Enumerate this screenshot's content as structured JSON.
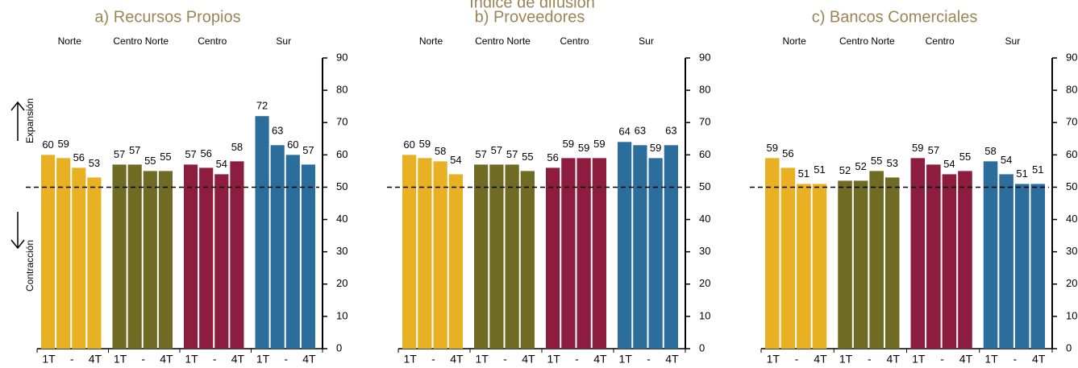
{
  "title": "Índice de difusión",
  "chart_data": [
    {
      "type": "bar",
      "title": "a) Recursos Propios",
      "categories": [
        "1T",
        "-",
        null,
        "4T"
      ],
      "series": [
        {
          "name": "Norte",
          "color": "#e8b124",
          "values": [
            60,
            59,
            56,
            53
          ]
        },
        {
          "name": "Centro Norte",
          "color": "#6f6b25",
          "values": [
            57,
            57,
            55,
            55
          ]
        },
        {
          "name": "Centro",
          "color": "#8c1d3f",
          "values": [
            57,
            56,
            54,
            58
          ]
        },
        {
          "name": "Sur",
          "color": "#2b6d9b",
          "values": [
            72,
            63,
            60,
            57
          ]
        }
      ],
      "ylim": [
        0,
        90
      ],
      "yticks": [
        0,
        10,
        20,
        30,
        40,
        50,
        60,
        70,
        80,
        90
      ],
      "reference_line": 50,
      "annotations": [
        "Expansión",
        "Contracción"
      ]
    },
    {
      "type": "bar",
      "title": "b) Proveedores",
      "categories": [
        "1T",
        "-",
        null,
        "4T"
      ],
      "series": [
        {
          "name": "Norte",
          "color": "#e8b124",
          "values": [
            60,
            59,
            58,
            54
          ]
        },
        {
          "name": "Centro Norte",
          "color": "#6f6b25",
          "values": [
            57,
            57,
            57,
            55
          ]
        },
        {
          "name": "Centro",
          "color": "#8c1d3f",
          "values": [
            56,
            59,
            59,
            59
          ]
        },
        {
          "name": "Sur",
          "color": "#2b6d9b",
          "values": [
            64,
            63,
            59,
            63
          ]
        }
      ],
      "ylim": [
        0,
        90
      ],
      "yticks": [
        0,
        10,
        20,
        30,
        40,
        50,
        60,
        70,
        80,
        90
      ],
      "reference_line": 50
    },
    {
      "type": "bar",
      "title": "c) Bancos Comerciales",
      "categories": [
        "1T",
        "-",
        null,
        "4T"
      ],
      "series": [
        {
          "name": "Norte",
          "color": "#e8b124",
          "values": [
            59,
            56,
            51,
            51
          ]
        },
        {
          "name": "Centro Norte",
          "color": "#6f6b25",
          "values": [
            52,
            52,
            55,
            53
          ]
        },
        {
          "name": "Centro",
          "color": "#8c1d3f",
          "values": [
            59,
            57,
            54,
            55
          ]
        },
        {
          "name": "Sur",
          "color": "#2b6d9b",
          "values": [
            58,
            54,
            51,
            51
          ]
        }
      ],
      "ylim": [
        0,
        90
      ],
      "yticks": [
        0,
        10,
        20,
        30,
        40,
        50,
        60,
        70,
        80,
        90
      ],
      "reference_line": 50
    }
  ]
}
